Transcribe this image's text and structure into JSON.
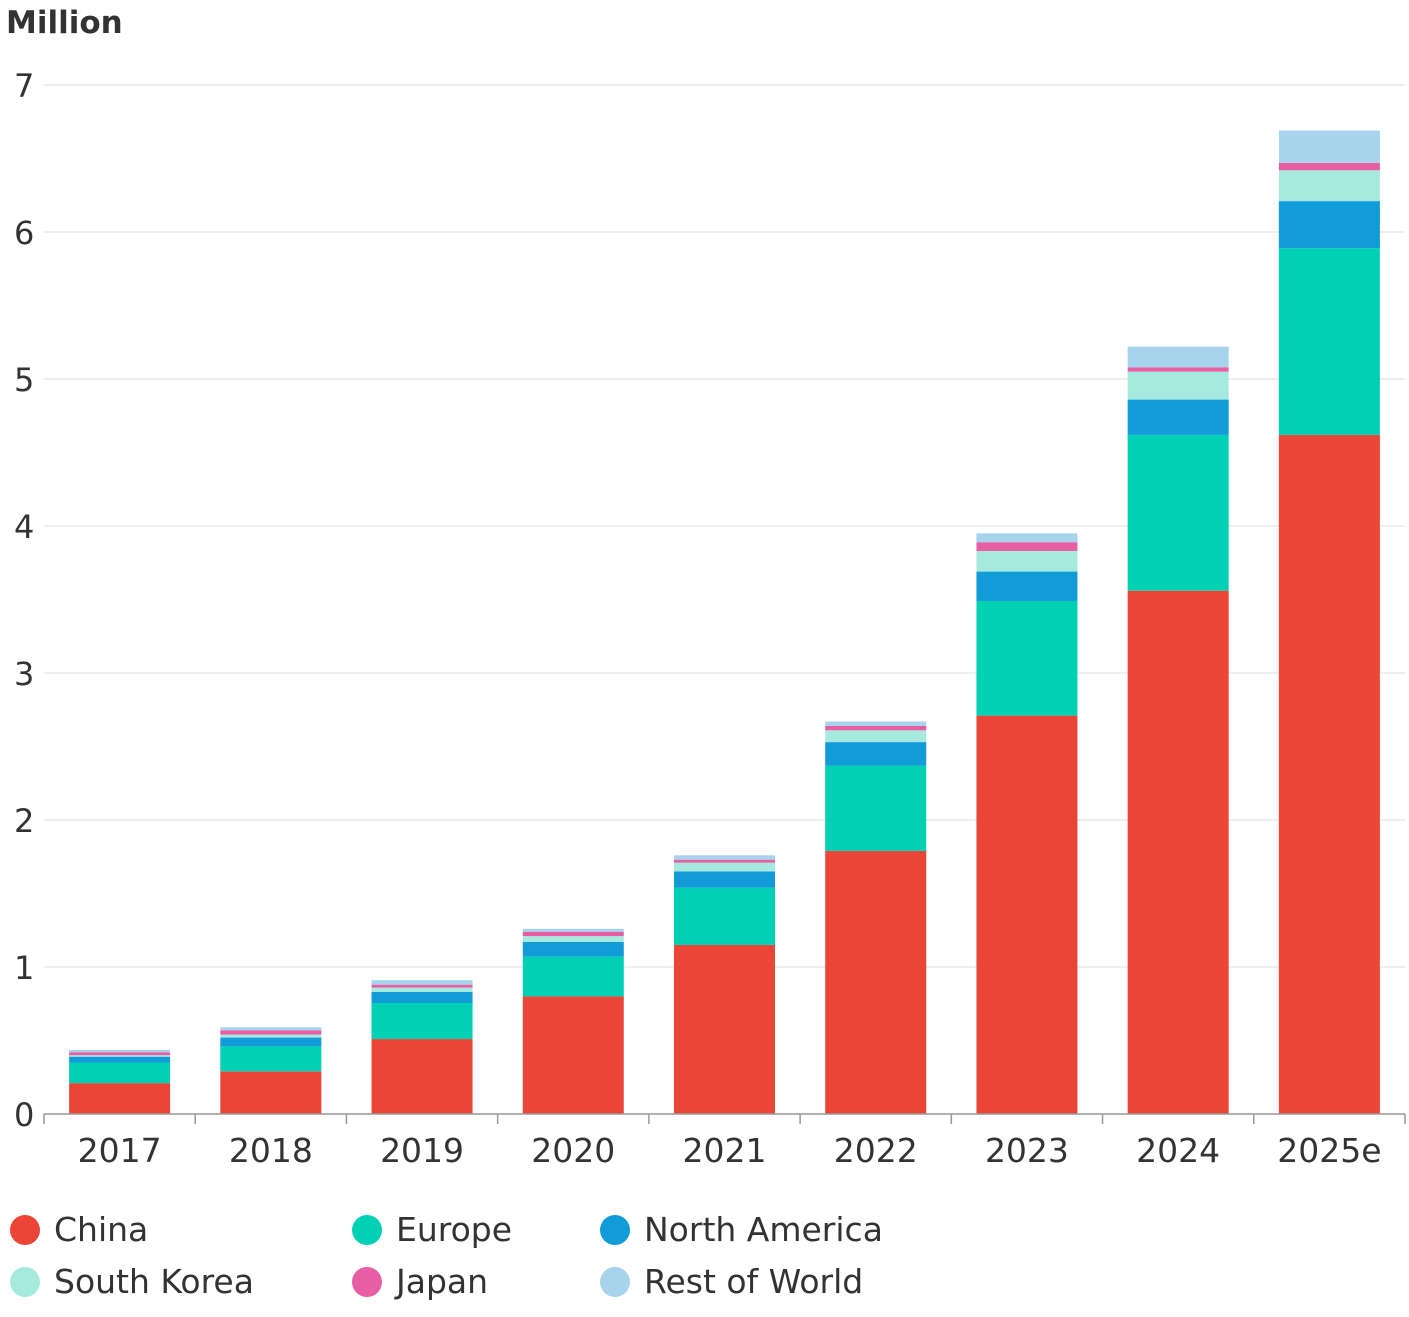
{
  "chart_data": {
    "type": "bar",
    "stacked": true,
    "ylabel": "Million",
    "ylim": [
      0,
      7
    ],
    "yticks": [
      "0",
      "1",
      "2",
      "3",
      "4",
      "5",
      "6",
      "7"
    ],
    "grid": true,
    "legend_position": "bottom-left",
    "categories": [
      "2017",
      "2018",
      "2019",
      "2020",
      "2021",
      "2022",
      "2023",
      "2024",
      "2025e"
    ],
    "series": [
      {
        "name": "China",
        "color": "#EB4537",
        "values": [
          0.21,
          0.29,
          0.51,
          0.8,
          1.15,
          1.79,
          2.71,
          3.56,
          4.62
        ]
      },
      {
        "name": "Europe",
        "color": "#00D0B4",
        "values": [
          0.14,
          0.17,
          0.245,
          0.27,
          0.39,
          0.58,
          0.78,
          1.06,
          1.27
        ]
      },
      {
        "name": "North America",
        "color": "#119BD8",
        "values": [
          0.04,
          0.06,
          0.075,
          0.1,
          0.11,
          0.16,
          0.2,
          0.24,
          0.32
        ]
      },
      {
        "name": "South Korea",
        "color": "#A6EADF",
        "values": [
          0.01,
          0.02,
          0.03,
          0.04,
          0.06,
          0.08,
          0.14,
          0.19,
          0.21
        ]
      },
      {
        "name": "Japan",
        "color": "#E85EA5",
        "values": [
          0.02,
          0.03,
          0.02,
          0.03,
          0.02,
          0.03,
          0.06,
          0.03,
          0.05
        ]
      },
      {
        "name": "Rest of World",
        "color": "#A7D3EC",
        "values": [
          0.015,
          0.02,
          0.03,
          0.02,
          0.03,
          0.03,
          0.06,
          0.14,
          0.22
        ]
      }
    ]
  }
}
